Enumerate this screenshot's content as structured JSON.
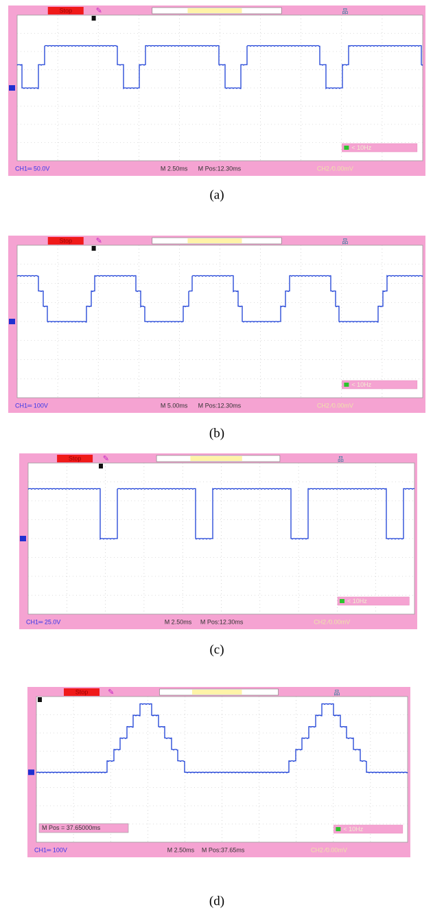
{
  "panels": [
    {
      "stop": "Stop",
      "ch1": "CH1═ 50.0V",
      "timebase": "M 2.50ms",
      "mpos": "M Pos:12.30ms",
      "ch2": "CH2 ⁄0.00mV",
      "freq": "< 10Hz",
      "caption": "(a)"
    },
    {
      "stop": "Stop",
      "ch1": "CH1═ 100V",
      "timebase": "M 5.00ms",
      "mpos": "M Pos:12.30ms",
      "ch2": "CH2 ⁄0.00mV",
      "freq": "< 10Hz",
      "caption": "(b)"
    },
    {
      "stop": "Stop",
      "ch1": "CH1═ 25.0V",
      "timebase": "M 2.50ms",
      "mpos": "M Pos:12.30ms",
      "ch2": "CH2 ⁄0.00mV",
      "freq": "< 10Hz",
      "caption": "(c)"
    },
    {
      "stop": "Stop",
      "ch1": "CH1═ 100V",
      "timebase": "M 2.50ms",
      "mpos": "M Pos:37.65ms",
      "ch2": "CH2 ⁄0.00mV",
      "freq": "< 10Hz",
      "caption": "(d)",
      "overlay": "M Pos = 37.65000ms"
    }
  ]
}
